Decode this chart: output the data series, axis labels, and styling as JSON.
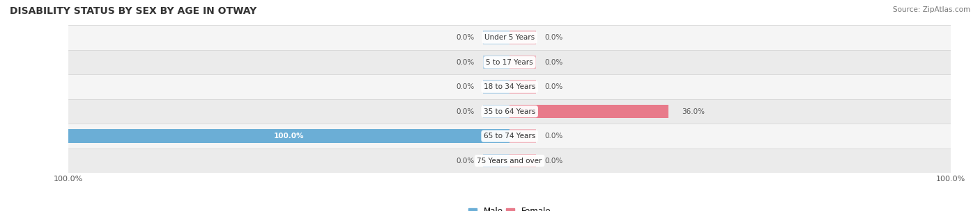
{
  "title": "DISABILITY STATUS BY SEX BY AGE IN OTWAY",
  "source": "Source: ZipAtlas.com",
  "categories": [
    "Under 5 Years",
    "5 to 17 Years",
    "18 to 34 Years",
    "35 to 64 Years",
    "65 to 74 Years",
    "75 Years and over"
  ],
  "male_values": [
    0.0,
    0.0,
    0.0,
    0.0,
    100.0,
    0.0
  ],
  "female_values": [
    0.0,
    0.0,
    0.0,
    36.0,
    0.0,
    0.0
  ],
  "male_color": "#6baed6",
  "female_color": "#e87a8a",
  "male_color_light": "#b8d4e8",
  "female_color_light": "#f0b8c0",
  "row_bg_even": "#f5f5f5",
  "row_bg_odd": "#ebebeb",
  "xlim_left": -100,
  "xlim_right": 100,
  "title_fontsize": 10,
  "source_fontsize": 7.5,
  "label_fontsize": 7.5,
  "category_fontsize": 7.5,
  "legend_fontsize": 8.5,
  "axis_label_fontsize": 8
}
